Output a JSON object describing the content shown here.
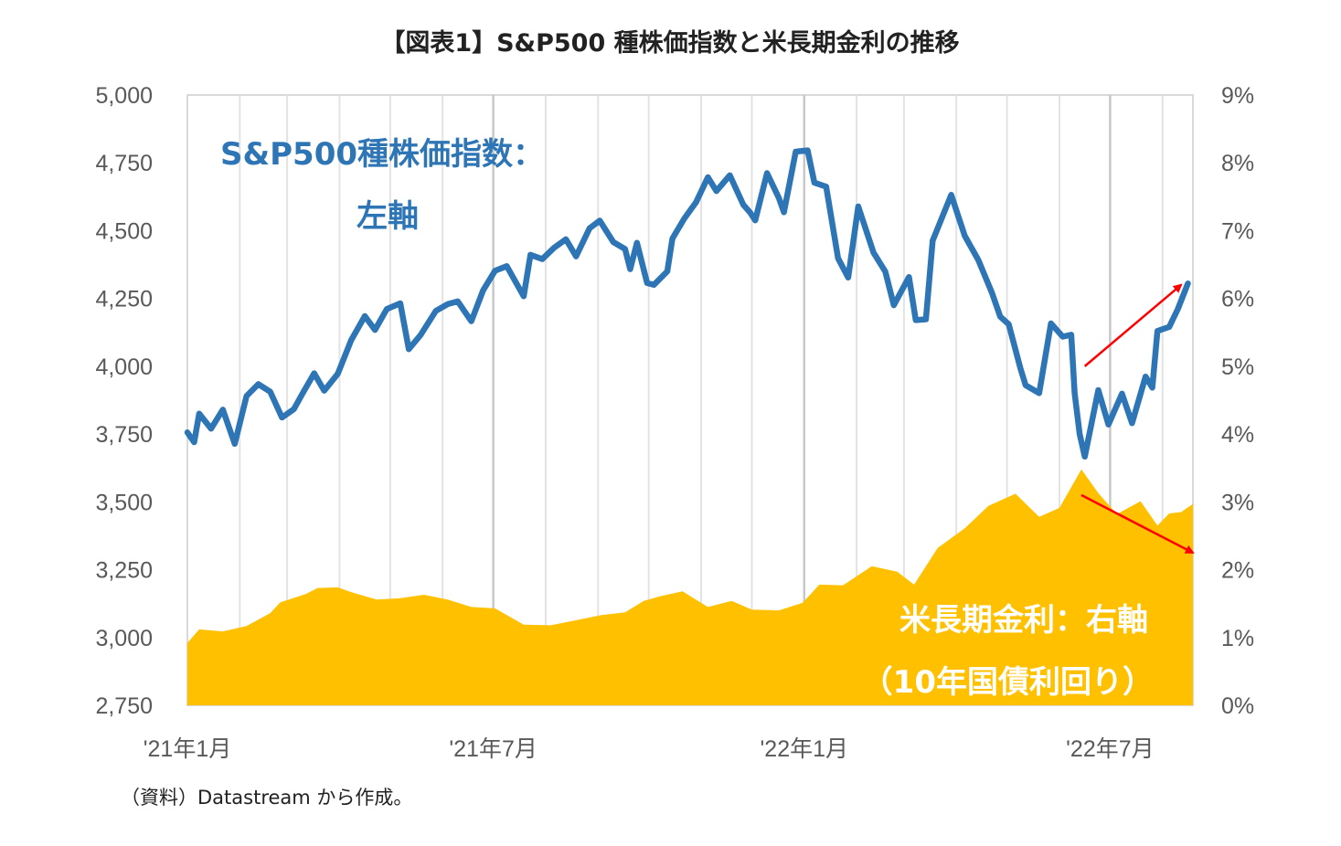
{
  "chart_data": {
    "type": "line+area",
    "title": "【図表1】S&P500 種株価指数と米長期金利の推移",
    "source_note": "（資料）Datastream から作成。",
    "x_ticks": [
      {
        "date": "2021-01",
        "label": "'21年1月"
      },
      {
        "date": "2021-07",
        "label": "'21年7月"
      },
      {
        "date": "2022-01",
        "label": "'22年1月"
      },
      {
        "date": "2022-07",
        "label": "'22年7月"
      }
    ],
    "x_range": [
      "2021-01-01",
      "2022-08-19"
    ],
    "y_left": {
      "min": 2750,
      "max": 5000,
      "ticks": [
        "2,750",
        "3,000",
        "3,250",
        "3,500",
        "3,750",
        "4,000",
        "4,250",
        "4,500",
        "4,750",
        "5,000"
      ]
    },
    "y_right": {
      "min": 0,
      "max": 9,
      "ticks": [
        "0%",
        "1%",
        "2%",
        "3%",
        "4%",
        "5%",
        "6%",
        "7%",
        "8%",
        "9%"
      ]
    },
    "grid": "vertical monthly",
    "series": [
      {
        "name": "S&P500種株価指数：左軸",
        "color": "#2E75B6",
        "axis": "left",
        "type": "line",
        "points": [
          [
            "2021-01-01",
            3756
          ],
          [
            "2021-01-05",
            3720
          ],
          [
            "2021-01-08",
            3825
          ],
          [
            "2021-01-15",
            3770
          ],
          [
            "2021-01-22",
            3840
          ],
          [
            "2021-01-29",
            3714
          ],
          [
            "2021-02-05",
            3890
          ],
          [
            "2021-02-12",
            3934
          ],
          [
            "2021-02-19",
            3906
          ],
          [
            "2021-02-26",
            3811
          ],
          [
            "2021-03-05",
            3842
          ],
          [
            "2021-03-10",
            3898
          ],
          [
            "2021-03-17",
            3974
          ],
          [
            "2021-03-23",
            3910
          ],
          [
            "2021-03-31",
            3972
          ],
          [
            "2021-04-08",
            4097
          ],
          [
            "2021-04-16",
            4185
          ],
          [
            "2021-04-22",
            4134
          ],
          [
            "2021-04-29",
            4211
          ],
          [
            "2021-05-07",
            4232
          ],
          [
            "2021-05-12",
            4063
          ],
          [
            "2021-05-19",
            4115
          ],
          [
            "2021-05-28",
            4204
          ],
          [
            "2021-06-04",
            4229
          ],
          [
            "2021-06-10",
            4239
          ],
          [
            "2021-06-18",
            4166
          ],
          [
            "2021-06-25",
            4280
          ],
          [
            "2021-07-02",
            4352
          ],
          [
            "2021-07-09",
            4369
          ],
          [
            "2021-07-19",
            4258
          ],
          [
            "2021-07-23",
            4411
          ],
          [
            "2021-07-30",
            4395
          ],
          [
            "2021-08-06",
            4437
          ],
          [
            "2021-08-13",
            4468
          ],
          [
            "2021-08-19",
            4405
          ],
          [
            "2021-08-27",
            4509
          ],
          [
            "2021-09-02",
            4537
          ],
          [
            "2021-09-10",
            4458
          ],
          [
            "2021-09-17",
            4432
          ],
          [
            "2021-09-20",
            4358
          ],
          [
            "2021-09-24",
            4455
          ],
          [
            "2021-09-30",
            4307
          ],
          [
            "2021-10-04",
            4300
          ],
          [
            "2021-10-12",
            4350
          ],
          [
            "2021-10-15",
            4471
          ],
          [
            "2021-10-22",
            4544
          ],
          [
            "2021-10-29",
            4605
          ],
          [
            "2021-11-05",
            4697
          ],
          [
            "2021-11-10",
            4646
          ],
          [
            "2021-11-18",
            4704
          ],
          [
            "2021-11-26",
            4595
          ],
          [
            "2021-11-30",
            4567
          ],
          [
            "2021-12-03",
            4538
          ],
          [
            "2021-12-10",
            4712
          ],
          [
            "2021-12-17",
            4620
          ],
          [
            "2021-12-20",
            4568
          ],
          [
            "2021-12-27",
            4791
          ],
          [
            "2022-01-03",
            4796
          ],
          [
            "2022-01-07",
            4677
          ],
          [
            "2022-01-14",
            4662
          ],
          [
            "2022-01-21",
            4398
          ],
          [
            "2022-01-27",
            4327
          ],
          [
            "2022-02-02",
            4589
          ],
          [
            "2022-02-11",
            4419
          ],
          [
            "2022-02-18",
            4349
          ],
          [
            "2022-02-23",
            4225
          ],
          [
            "2022-03-04",
            4329
          ],
          [
            "2022-03-08",
            4170
          ],
          [
            "2022-03-14",
            4173
          ],
          [
            "2022-03-18",
            4463
          ],
          [
            "2022-03-29",
            4632
          ],
          [
            "2022-04-06",
            4481
          ],
          [
            "2022-04-14",
            4392
          ],
          [
            "2022-04-22",
            4272
          ],
          [
            "2022-04-27",
            4183
          ],
          [
            "2022-05-02",
            4155
          ],
          [
            "2022-05-09",
            3991
          ],
          [
            "2022-05-12",
            3930
          ],
          [
            "2022-05-20",
            3901
          ],
          [
            "2022-05-27",
            4158
          ],
          [
            "2022-06-03",
            4109
          ],
          [
            "2022-06-08",
            4116
          ],
          [
            "2022-06-10",
            3901
          ],
          [
            "2022-06-13",
            3750
          ],
          [
            "2022-06-16",
            3667
          ],
          [
            "2022-06-24",
            3912
          ],
          [
            "2022-06-30",
            3785
          ],
          [
            "2022-07-08",
            3899
          ],
          [
            "2022-07-14",
            3790
          ],
          [
            "2022-07-22",
            3962
          ],
          [
            "2022-07-26",
            3921
          ],
          [
            "2022-07-29",
            4130
          ],
          [
            "2022-08-05",
            4145
          ],
          [
            "2022-08-10",
            4210
          ],
          [
            "2022-08-16",
            4305
          ]
        ]
      },
      {
        "name": "米長期金利：右軸（10年国債利回り）",
        "color": "#FFC000",
        "axis": "right",
        "type": "area",
        "points": [
          [
            "2021-01-01",
            0.92
          ],
          [
            "2021-01-08",
            1.12
          ],
          [
            "2021-01-22",
            1.09
          ],
          [
            "2021-02-05",
            1.17
          ],
          [
            "2021-02-19",
            1.36
          ],
          [
            "2021-02-25",
            1.52
          ],
          [
            "2021-03-12",
            1.64
          ],
          [
            "2021-03-19",
            1.73
          ],
          [
            "2021-03-31",
            1.74
          ],
          [
            "2021-04-09",
            1.66
          ],
          [
            "2021-04-23",
            1.56
          ],
          [
            "2021-05-07",
            1.58
          ],
          [
            "2021-05-21",
            1.63
          ],
          [
            "2021-06-04",
            1.56
          ],
          [
            "2021-06-18",
            1.45
          ],
          [
            "2021-07-02",
            1.43
          ],
          [
            "2021-07-19",
            1.19
          ],
          [
            "2021-08-04",
            1.18
          ],
          [
            "2021-08-20",
            1.26
          ],
          [
            "2021-09-03",
            1.33
          ],
          [
            "2021-09-17",
            1.37
          ],
          [
            "2021-09-28",
            1.54
          ],
          [
            "2021-10-08",
            1.61
          ],
          [
            "2021-10-21",
            1.68
          ],
          [
            "2021-11-05",
            1.45
          ],
          [
            "2021-11-19",
            1.54
          ],
          [
            "2021-12-01",
            1.41
          ],
          [
            "2021-12-17",
            1.4
          ],
          [
            "2021-12-31",
            1.51
          ],
          [
            "2022-01-10",
            1.78
          ],
          [
            "2022-01-24",
            1.77
          ],
          [
            "2022-02-10",
            2.05
          ],
          [
            "2022-02-25",
            1.97
          ],
          [
            "2022-03-07",
            1.78
          ],
          [
            "2022-03-21",
            2.32
          ],
          [
            "2022-04-06",
            2.61
          ],
          [
            "2022-04-20",
            2.94
          ],
          [
            "2022-05-06",
            3.12
          ],
          [
            "2022-05-20",
            2.78
          ],
          [
            "2022-06-01",
            2.91
          ],
          [
            "2022-06-14",
            3.48
          ],
          [
            "2022-06-24",
            3.13
          ],
          [
            "2022-07-05",
            2.82
          ],
          [
            "2022-07-19",
            3.01
          ],
          [
            "2022-07-29",
            2.65
          ],
          [
            "2022-08-05",
            2.83
          ],
          [
            "2022-08-12",
            2.85
          ],
          [
            "2022-08-19",
            2.97
          ]
        ]
      }
    ],
    "annotations": [
      {
        "text": "S&P500種株価指数：",
        "color": "#2E75B6"
      },
      {
        "text": "左軸",
        "color": "#2E75B6"
      },
      {
        "text": "米長期金利：右軸",
        "color": "#FFFFFF"
      },
      {
        "text": "（10年国債利回り）",
        "color": "#FFFFFF"
      }
    ],
    "arrows": [
      {
        "direction": "up",
        "color": "#FF0000",
        "from": [
          "2022-06-16",
          4000
        ],
        "to": [
          "2022-08-12",
          4300
        ]
      },
      {
        "direction": "down",
        "color": "#FF0000",
        "from": [
          "2022-06-14",
          3.1
        ],
        "to": [
          "2022-08-19",
          2.25
        ]
      }
    ]
  }
}
